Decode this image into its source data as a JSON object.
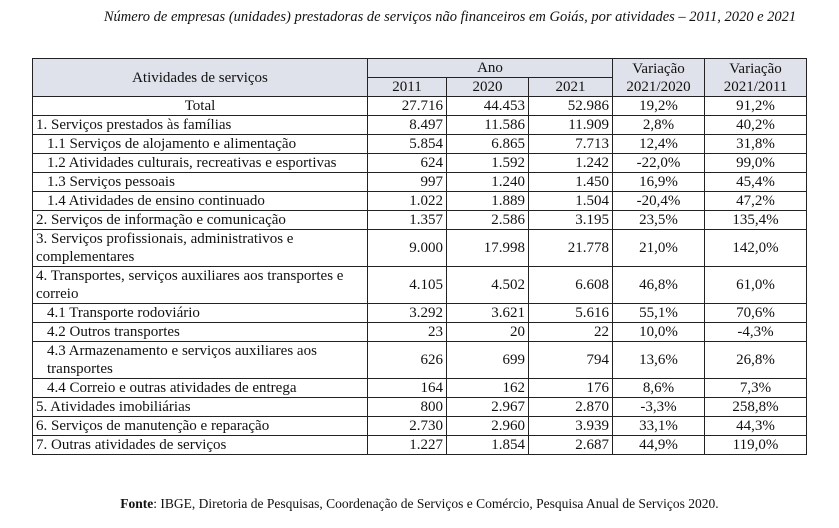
{
  "title": "Número de empresas (unidades) prestadoras de serviços não financeiros em Goiás, por atividades – 2011, 2020 e 2021",
  "header": {
    "activities": "Atividades de serviços",
    "year_group": "Ano",
    "years": [
      "2011",
      "2020",
      "2021"
    ],
    "var1": "Variação 2021/2020",
    "var2": "Variação 2021/2011"
  },
  "rows": [
    {
      "label": "Total",
      "y2011": "27.716",
      "y2020": "44.453",
      "y2021": "52.986",
      "v1": "19,2%",
      "v2": "91,2%",
      "style": "center"
    },
    {
      "label": "1. Serviços prestados às famílias",
      "y2011": "8.497",
      "y2020": "11.586",
      "y2021": "11.909",
      "v1": "2,8%",
      "v2": "40,2%",
      "style": "main"
    },
    {
      "label": "1.1 Serviços de alojamento e alimentação",
      "y2011": "5.854",
      "y2020": "6.865",
      "y2021": "7.713",
      "v1": "12,4%",
      "v2": "31,8%",
      "style": "sub"
    },
    {
      "label": "1.2 Atividades culturais, recreativas e esportivas",
      "y2011": "624",
      "y2020": "1.592",
      "y2021": "1.242",
      "v1": "-22,0%",
      "v2": "99,0%",
      "style": "sub"
    },
    {
      "label": "1.3 Serviços pessoais",
      "y2011": "997",
      "y2020": "1.240",
      "y2021": "1.450",
      "v1": "16,9%",
      "v2": "45,4%",
      "style": "sub"
    },
    {
      "label": "1.4 Atividades de ensino continuado",
      "y2011": "1.022",
      "y2020": "1.889",
      "y2021": "1.504",
      "v1": "-20,4%",
      "v2": "47,2%",
      "style": "sub"
    },
    {
      "label": "2. Serviços de informação e comunicação",
      "y2011": "1.357",
      "y2020": "2.586",
      "y2021": "3.195",
      "v1": "23,5%",
      "v2": "135,4%",
      "style": "main"
    },
    {
      "label": "3. Serviços profissionais, administrativos e complementares",
      "y2011": "9.000",
      "y2020": "17.998",
      "y2021": "21.778",
      "v1": "21,0%",
      "v2": "142,0%",
      "style": "main"
    },
    {
      "label": "4. Transportes, serviços auxiliares aos transportes e correio",
      "y2011": "4.105",
      "y2020": "4.502",
      "y2021": "6.608",
      "v1": "46,8%",
      "v2": "61,0%",
      "style": "main"
    },
    {
      "label": "4.1 Transporte rodoviário",
      "y2011": "3.292",
      "y2020": "3.621",
      "y2021": "5.616",
      "v1": "55,1%",
      "v2": "70,6%",
      "style": "sub"
    },
    {
      "label": "4.2 Outros transportes",
      "y2011": "23",
      "y2020": "20",
      "y2021": "22",
      "v1": "10,0%",
      "v2": "-4,3%",
      "style": "sub"
    },
    {
      "label": "4.3 Armazenamento e serviços auxiliares aos transportes",
      "y2011": "626",
      "y2020": "699",
      "y2021": "794",
      "v1": "13,6%",
      "v2": "26,8%",
      "style": "sub"
    },
    {
      "label": "4.4 Correio e outras atividades de entrega",
      "y2011": "164",
      "y2020": "162",
      "y2021": "176",
      "v1": "8,6%",
      "v2": "7,3%",
      "style": "sub"
    },
    {
      "label": "5. Atividades imobiliárias",
      "y2011": "800",
      "y2020": "2.967",
      "y2021": "2.870",
      "v1": "-3,3%",
      "v2": "258,8%",
      "style": "main"
    },
    {
      "label": "6. Serviços de manutenção e reparação",
      "y2011": "2.730",
      "y2020": "2.960",
      "y2021": "3.939",
      "v1": "33,1%",
      "v2": "44,3%",
      "style": "main"
    },
    {
      "label": "7. Outras atividades de serviços",
      "y2011": "1.227",
      "y2020": "1.854",
      "y2021": "2.687",
      "v1": "44,9%",
      "v2": "119,0%",
      "style": "main"
    }
  ],
  "source": {
    "label": "Fonte",
    "text": ": IBGE, Diretoria de Pesquisas, Coordenação de Serviços e Comércio, Pesquisa Anual de Serviços 2020."
  }
}
